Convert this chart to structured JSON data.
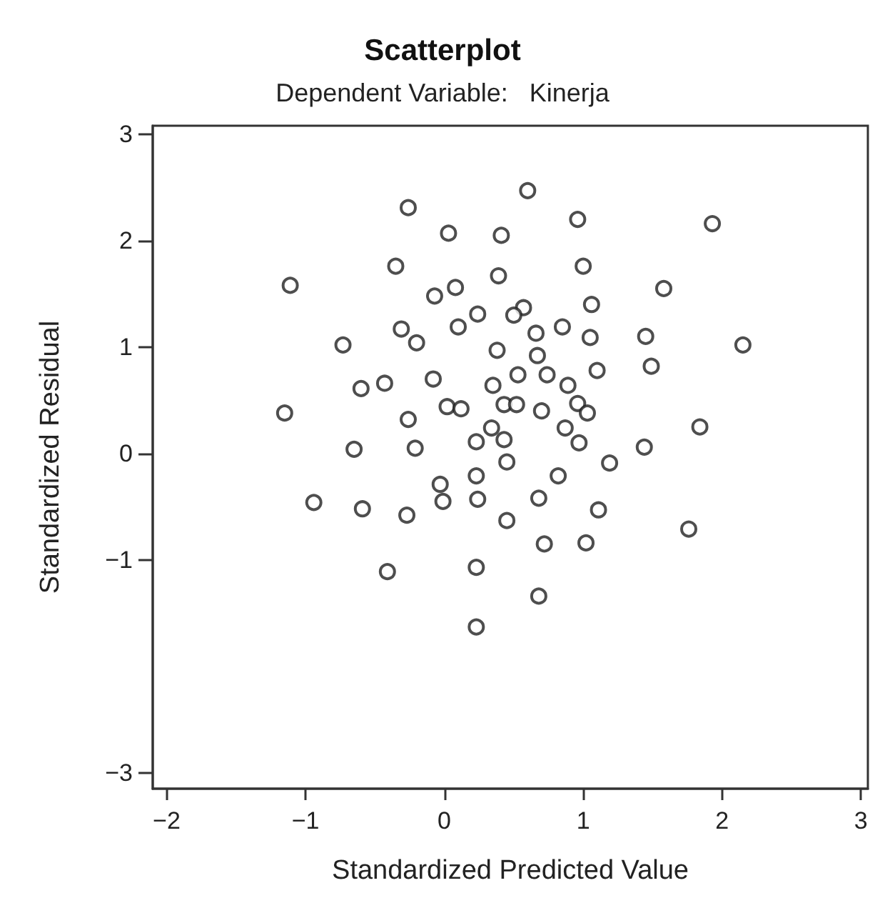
{
  "chart_data": {
    "type": "scatter",
    "title": "Scatterplot",
    "subtitle": "Dependent Variable:   Kinerja",
    "xlabel": "Standardized Predicted Value",
    "ylabel": "Standardized Residual",
    "xlim": [
      -2.1,
      3.05
    ],
    "xticks": [
      -2,
      -1,
      0,
      1,
      2,
      3
    ],
    "ylim": [
      -3.15,
      3.08
    ],
    "yticks": [
      3,
      2,
      1,
      0,
      -1,
      -3
    ],
    "grid": false,
    "marker": "circle",
    "series": [
      {
        "color": "#222222",
        "x": [
          -0.26,
          0.03,
          0.41,
          -0.35,
          -1.11,
          -0.07,
          0.08,
          0.39,
          0.24,
          -0.31,
          -0.2,
          0.1,
          -0.73,
          -0.08,
          -0.6,
          -0.43,
          0.35,
          0.38,
          0.02,
          0.12,
          -1.15,
          0.6,
          0.96,
          1.93,
          1.0,
          1.58,
          1.06,
          0.57,
          0.5,
          0.66,
          0.85,
          1.05,
          1.45,
          2.15,
          0.67,
          0.53,
          0.74,
          1.1,
          1.49,
          0.89,
          0.43,
          0.52,
          0.96,
          0.7,
          1.03,
          0.34,
          0.87,
          1.84,
          0.43,
          0.23,
          0.97,
          1.44,
          0.45,
          1.19,
          0.82,
          0.23,
          0.24,
          0.68,
          1.11,
          0.45,
          1.76,
          0.72,
          1.02,
          0.23,
          0.68,
          0.23,
          -0.26,
          -0.65,
          -0.21,
          -0.03,
          -0.94,
          -0.59,
          -0.27,
          -0.01,
          -0.41
        ],
        "values": [
          2.31,
          2.07,
          2.05,
          1.76,
          1.58,
          1.48,
          1.56,
          1.67,
          1.31,
          1.17,
          1.04,
          1.19,
          1.02,
          0.7,
          0.61,
          0.66,
          0.64,
          0.97,
          0.44,
          0.42,
          0.38,
          2.47,
          2.2,
          2.16,
          1.76,
          1.55,
          1.4,
          1.37,
          1.3,
          1.13,
          1.19,
          1.09,
          1.1,
          1.02,
          0.92,
          0.74,
          0.74,
          0.78,
          0.82,
          0.64,
          0.46,
          0.46,
          0.47,
          0.4,
          0.38,
          0.24,
          0.24,
          0.25,
          0.13,
          0.11,
          0.1,
          0.06,
          -0.08,
          -0.09,
          -0.21,
          -0.21,
          -0.43,
          -0.42,
          -0.53,
          -0.63,
          -0.71,
          -0.85,
          -0.84,
          -1.07,
          -1.34,
          -1.63,
          0.32,
          0.04,
          0.05,
          -0.29,
          -0.46,
          -0.52,
          -0.58,
          -0.45,
          -1.11
        ]
      }
    ]
  }
}
